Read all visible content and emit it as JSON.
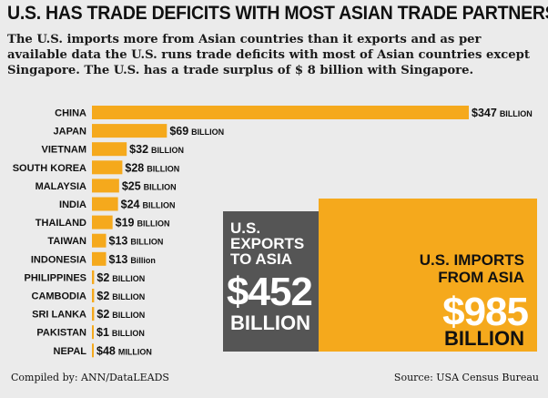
{
  "header": {
    "title": "U.S. HAS TRADE DEFICITS WITH MOST ASIAN TRADE PARTNERS",
    "subtitle": "The U.S. imports more from Asian countries than it exports and as per available data the U.S. runs trade deficits with most of Asian countries except Singapore. The U.S. has a trade surplus of $ 8 billion with Singapore."
  },
  "colors": {
    "bar": "#f5a91c",
    "exports_box": "#555555",
    "background": "#ebebeb"
  },
  "chart_data": {
    "type": "bar",
    "orientation": "horizontal",
    "unit": "billion USD",
    "categories": [
      "CHINA",
      "JAPAN",
      "VIETNAM",
      "SOUTH KOREA",
      "MALAYSIA",
      "INDIA",
      "THAILAND",
      "TAIWAN",
      "INDONESIA",
      "PHILIPPINES",
      "CAMBODIA",
      "SRI LANKA",
      "PAKISTAN",
      "NEPAL"
    ],
    "values": [
      347,
      69,
      32,
      28,
      25,
      24,
      19,
      13,
      13,
      2,
      2,
      2,
      1,
      0.048
    ],
    "labels": [
      {
        "amount": "$347",
        "unit": "BILLION"
      },
      {
        "amount": "$69",
        "unit": "BILLION"
      },
      {
        "amount": "$32",
        "unit": "BILLION"
      },
      {
        "amount": "$28",
        "unit": "BILLION"
      },
      {
        "amount": "$25",
        "unit": "BILLION"
      },
      {
        "amount": "$24",
        "unit": "BILLION"
      },
      {
        "amount": "$19",
        "unit": "BILLION"
      },
      {
        "amount": "$13",
        "unit": "BILLION"
      },
      {
        "amount": "$13",
        "unit": "Billion"
      },
      {
        "amount": "$2",
        "unit": "BILLION"
      },
      {
        "amount": "$2",
        "unit": "BILLION"
      },
      {
        "amount": "$2",
        "unit": "BILLION"
      },
      {
        "amount": "$1",
        "unit": "BILLION"
      },
      {
        "amount": "$48",
        "unit": "MILLION"
      }
    ],
    "xlim": [
      0,
      347
    ],
    "grid": false,
    "legend": "none"
  },
  "summary": {
    "exports": {
      "label": "U.S.\nEXPORTS\nTO ASIA",
      "amount": "$452",
      "unit": "BILLION",
      "value": 452
    },
    "imports": {
      "label": "U.S. IMPORTS\nFROM ASIA",
      "amount": "$985",
      "unit": "BILLION",
      "value": 985
    }
  },
  "footer": {
    "credit": "Compiled by: ANN/DataLEADS",
    "source": "Source:  USA Census Bureau"
  }
}
